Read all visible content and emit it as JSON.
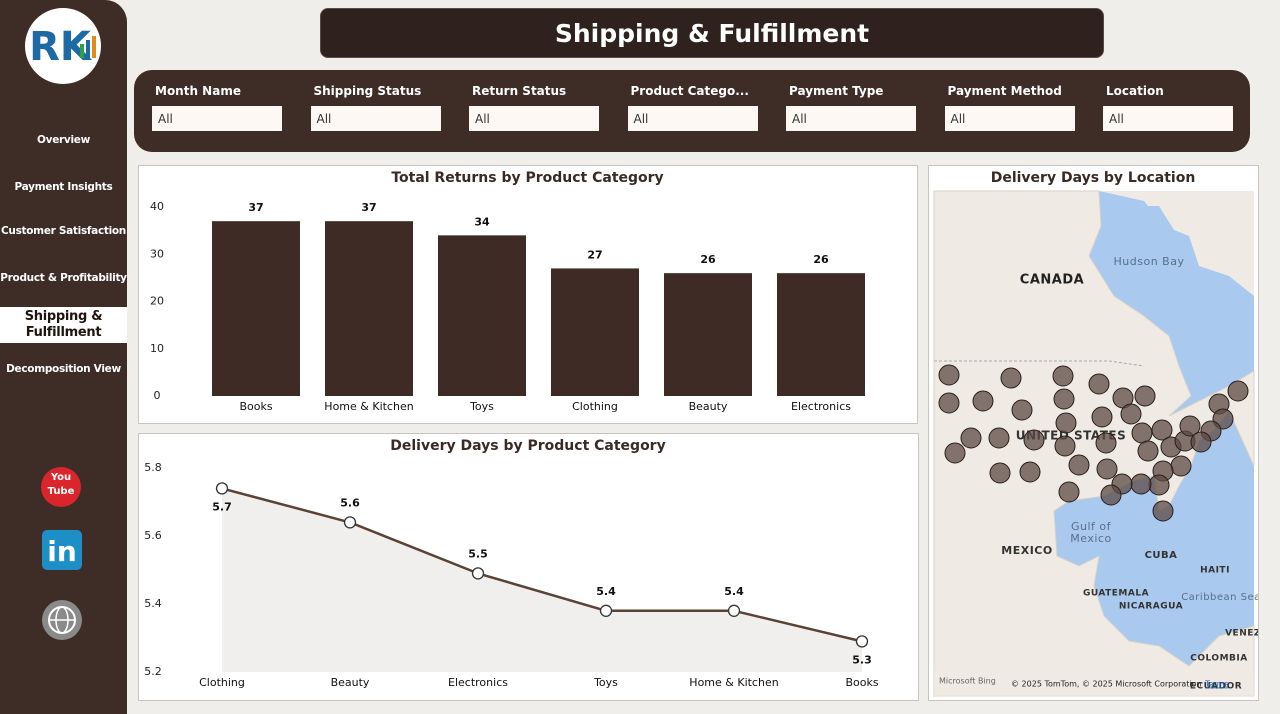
{
  "logo": {
    "text": "RK"
  },
  "nav": {
    "items": [
      "Overview",
      "Payment Insights",
      "Customer Satisfaction",
      "Product & Profitability",
      "Shipping & Fulfillment",
      "Decomposition View"
    ],
    "active": 4
  },
  "social": {
    "youtube": [
      "You",
      "Tube"
    ],
    "linkedin": "in"
  },
  "header": {
    "title": "Shipping & Fulfillment"
  },
  "filters": [
    {
      "label": "Month Name",
      "value": "All"
    },
    {
      "label": "Shipping Status",
      "value": "All"
    },
    {
      "label": "Return Status",
      "value": "All"
    },
    {
      "label": "Product Catego...",
      "value": "All"
    },
    {
      "label": "Payment Type",
      "value": "All"
    },
    {
      "label": "Payment Method",
      "value": "All"
    },
    {
      "label": "Location",
      "value": "All"
    }
  ],
  "chart_data": [
    {
      "type": "bar",
      "title": "Total Returns by Product Category",
      "categories": [
        "Books",
        "Home & Kitchen",
        "Toys",
        "Clothing",
        "Beauty",
        "Electronics"
      ],
      "values": [
        37,
        37,
        34,
        27,
        26,
        26
      ],
      "color": "#3f2b26",
      "ylim": [
        0,
        40
      ],
      "yticks": [
        0,
        10,
        20,
        30,
        40
      ],
      "grid": false
    },
    {
      "type": "line",
      "title": "Delivery Days by Product Category",
      "categories": [
        "Clothing",
        "Beauty",
        "Electronics",
        "Toys",
        "Home & Kitchen",
        "Books"
      ],
      "values": [
        5.74,
        5.64,
        5.49,
        5.38,
        5.38,
        5.29
      ],
      "value_labels": [
        "5.7",
        "5.6",
        "5.5",
        "5.4",
        "5.4",
        "5.3"
      ],
      "color": "#5b4237",
      "area_color": "#f0efee",
      "ylim": [
        5.2,
        5.8
      ],
      "yticks": [
        5.2,
        5.4,
        5.6,
        5.8
      ],
      "grid": false
    }
  ],
  "map": {
    "title": "Delivery Days by Location",
    "labels": [
      "CANADA",
      "Hudson Bay",
      "UNITED STATES",
      "Gulf of",
      "Mexico",
      "MEXICO",
      "CUBA",
      "HAITI",
      "GUATEMALA",
      "NICARAGUA",
      "Caribbean Sea",
      "VENEZ",
      "COLOMBIA",
      "ECUADOR"
    ],
    "attribution": "Microsoft Bing",
    "copyright": "© 2025 TomTom, © 2025 Microsoft Corporation",
    "terms": "Terms"
  }
}
